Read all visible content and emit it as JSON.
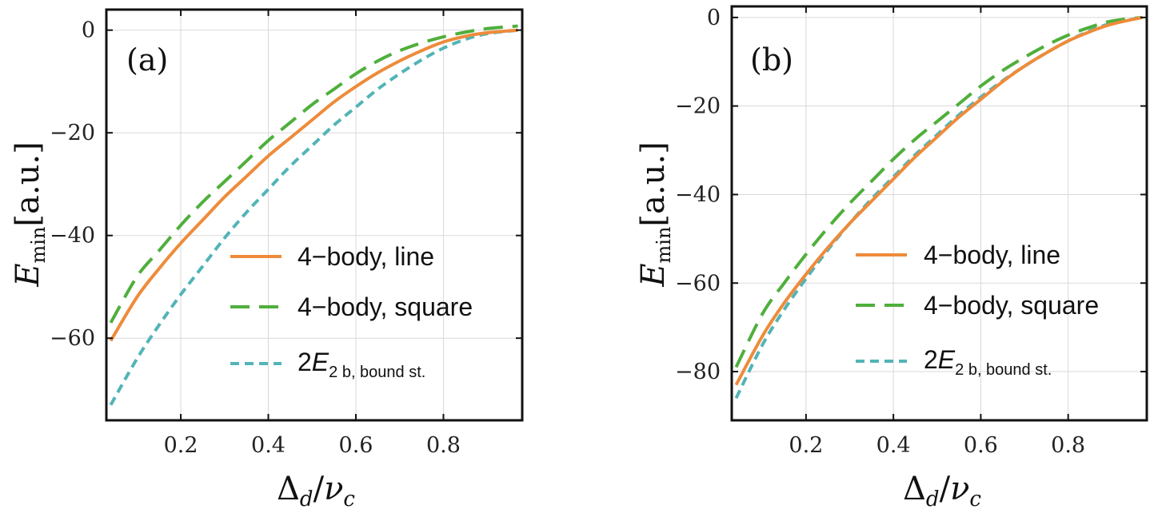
{
  "legend": {
    "line": "4−body, line",
    "square": "4−body, square",
    "bound_prefix": "2",
    "bound_E": "E",
    "bound_sub": "2 b, bound st."
  },
  "axis": {
    "xlabel_delta": "Δ",
    "xlabel_d": "d",
    "xlabel_slash": "/",
    "xlabel_nu": "ν",
    "xlabel_c": "c",
    "ylabel_E": "E",
    "ylabel_min": "min",
    "ylabel_unit": "[a.u.]"
  },
  "colors": {
    "line": "#EE8B3A",
    "square": "#4FAF3C",
    "bound": "#52B4B7"
  },
  "chart_data": [
    {
      "type": "line",
      "panel_label": "(a)",
      "xlabel": "Δd/νc",
      "ylabel": "Emin[a.u.]",
      "xlim": [
        0.03,
        0.98
      ],
      "ylim": [
        -76,
        4
      ],
      "xticks": [
        0.2,
        0.4,
        0.6,
        0.8
      ],
      "xtick_labels": [
        "0.2",
        "0.4",
        "0.6",
        "0.8"
      ],
      "yticks": [
        0,
        -20,
        -40,
        -60
      ],
      "ytick_labels": [
        "0",
        "−20",
        "−40",
        "−60"
      ],
      "grid": true,
      "legend_position": "lower-right",
      "x": [
        0.04,
        0.1,
        0.15,
        0.2,
        0.25,
        0.3,
        0.35,
        0.4,
        0.45,
        0.5,
        0.55,
        0.6,
        0.65,
        0.7,
        0.75,
        0.8,
        0.85,
        0.9,
        0.97
      ],
      "series": [
        {
          "name": "4-body, line",
          "key": "line",
          "values": [
            -60.5,
            -52,
            -46.5,
            -41.5,
            -37,
            -32.5,
            -28.5,
            -24.5,
            -21,
            -17.5,
            -14,
            -11,
            -8.3,
            -6,
            -4,
            -2.3,
            -1.2,
            -0.5,
            0
          ]
        },
        {
          "name": "4-body, square",
          "key": "square",
          "values": [
            -57,
            -48,
            -43,
            -38,
            -33.5,
            -29.5,
            -25.5,
            -21.5,
            -18,
            -14.5,
            -11.5,
            -8.5,
            -6,
            -4,
            -2.5,
            -1.3,
            -0.4,
            0.3,
            0.8
          ]
        },
        {
          "name": "2E2b, bound st.",
          "key": "bound",
          "values": [
            -73,
            -64,
            -57.5,
            -51.5,
            -46,
            -40.5,
            -35.5,
            -31,
            -26.5,
            -22.5,
            -18.5,
            -15,
            -11.5,
            -8.5,
            -5.8,
            -3.5,
            -1.8,
            -0.7,
            0
          ]
        }
      ]
    },
    {
      "type": "line",
      "panel_label": "(b)",
      "xlabel": "Δd/νc",
      "ylabel": "Emin[a.u.]",
      "xlim": [
        0.03,
        0.98
      ],
      "ylim": [
        -91,
        2.5
      ],
      "xticks": [
        0.2,
        0.4,
        0.6,
        0.8
      ],
      "xtick_labels": [
        "0.2",
        "0.4",
        "0.6",
        "0.8"
      ],
      "yticks": [
        0,
        -20,
        -40,
        -60,
        -80
      ],
      "ytick_labels": [
        "0",
        "−20",
        "−40",
        "−60",
        "−80"
      ],
      "grid": true,
      "legend_position": "lower-right",
      "x": [
        0.04,
        0.1,
        0.15,
        0.2,
        0.25,
        0.3,
        0.35,
        0.4,
        0.45,
        0.5,
        0.55,
        0.6,
        0.65,
        0.7,
        0.75,
        0.8,
        0.85,
        0.9,
        0.97
      ],
      "series": [
        {
          "name": "4-body, line",
          "key": "line",
          "values": [
            -83,
            -72,
            -64.5,
            -58,
            -52,
            -46.5,
            -41.5,
            -36.5,
            -31.5,
            -27,
            -22.5,
            -18.5,
            -14.5,
            -11,
            -8,
            -5.3,
            -3.2,
            -1.5,
            0
          ]
        },
        {
          "name": "4-body, square",
          "key": "square",
          "values": [
            -79,
            -67,
            -60,
            -53.5,
            -47.5,
            -42,
            -37,
            -32,
            -27.5,
            -23.5,
            -19.5,
            -15.5,
            -12,
            -9,
            -6.3,
            -4,
            -2.2,
            -0.8,
            0
          ]
        },
        {
          "name": "2E2b, bound st.",
          "key": "bound",
          "values": [
            -86,
            -74,
            -66,
            -59,
            -52.5,
            -46.5,
            -41,
            -36,
            -31,
            -26.5,
            -22,
            -18,
            -14.3,
            -11,
            -8,
            -5.3,
            -3,
            -1.3,
            0
          ]
        }
      ]
    }
  ]
}
